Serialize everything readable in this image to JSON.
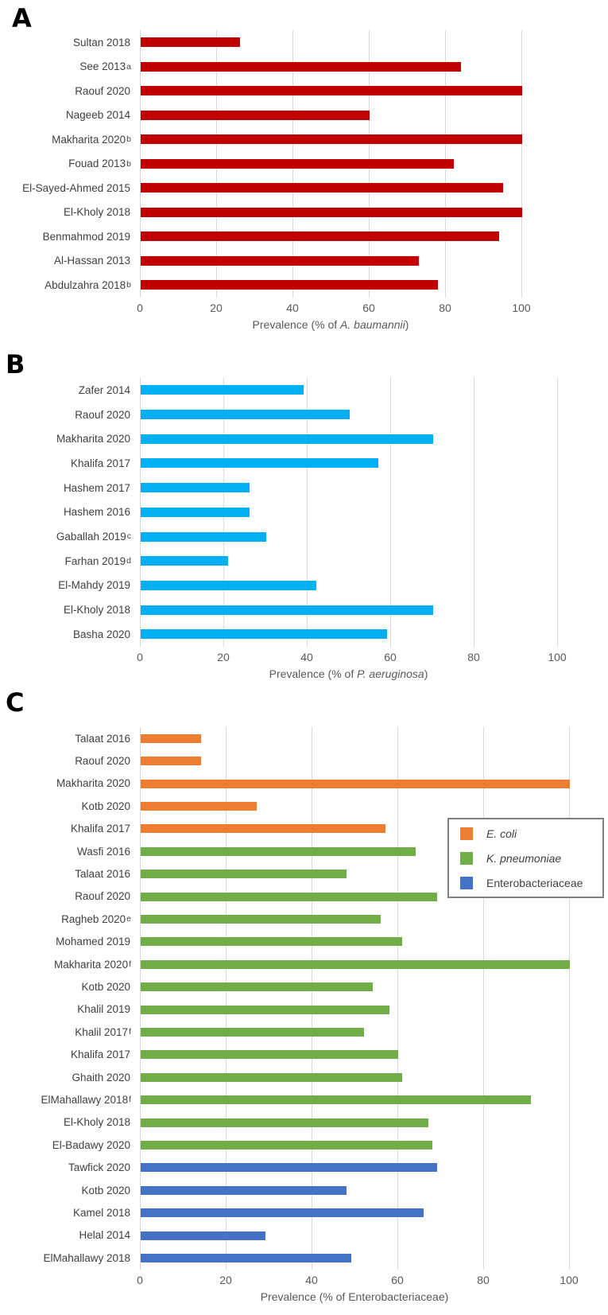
{
  "figure": {
    "panel_letters": [
      "A",
      "B",
      "C"
    ]
  },
  "chart_data": [
    {
      "panel": "A",
      "type": "bar",
      "orientation": "horizontal",
      "bar_color": "#C00000",
      "grid": true,
      "xlim": [
        0,
        100
      ],
      "ticks": [
        0,
        20,
        40,
        60,
        80,
        100
      ],
      "xlabel_prefix": "Prevalence (% of ",
      "xlabel_italic": "A. baumannii",
      "xlabel_suffix": ")",
      "categories": [
        "Sultan 2018",
        "See 2013",
        "Raouf 2020",
        "Nageeb 2014",
        "Makharita 2020",
        "Fouad 2013",
        "El-Sayed-Ahmed 2015",
        "El-Kholy 2018",
        "Benmahmod 2019",
        "Al-Hassan 2013",
        "Abdulzahra 2018"
      ],
      "superscripts": [
        "",
        "a",
        "",
        "",
        "b",
        "b",
        "",
        "",
        "",
        "",
        "b"
      ],
      "values": [
        26,
        84,
        100,
        60,
        100,
        82,
        95,
        100,
        94,
        73,
        78
      ]
    },
    {
      "panel": "B",
      "type": "bar",
      "orientation": "horizontal",
      "bar_color": "#00B0F0",
      "grid": true,
      "xlim": [
        0,
        100
      ],
      "ticks": [
        0,
        20,
        40,
        60,
        80,
        100
      ],
      "xlabel_prefix": "Prevalence (% of ",
      "xlabel_italic": "P. aeruginosa",
      "xlabel_suffix": ")",
      "categories": [
        "Zafer 2014",
        "Raouf 2020",
        "Makharita 2020",
        "Khalifa 2017",
        "Hashem 2017",
        "Hashem 2016",
        "Gaballah 2019",
        "Farhan 2019",
        "El-Mahdy 2019",
        "El-Kholy 2018",
        "Basha 2020"
      ],
      "superscripts": [
        "",
        "",
        "",
        "",
        "",
        "",
        "c",
        "d",
        "",
        "",
        ""
      ],
      "values": [
        39,
        50,
        70,
        57,
        26,
        26,
        30,
        21,
        42,
        70,
        59
      ]
    },
    {
      "panel": "C",
      "type": "bar",
      "orientation": "horizontal",
      "grid": true,
      "xlim": [
        0,
        100
      ],
      "ticks": [
        0,
        20,
        40,
        60,
        80,
        100
      ],
      "xlabel_prefix": "Prevalence (% of Enterobacteriaceae)",
      "xlabel_italic": "",
      "xlabel_suffix": "",
      "series_colors": {
        "E. coli": "#ED7D31",
        "K. pneumoniae": "#70AD47",
        "Enterobacteriaceae": "#4472C4"
      },
      "legend": {
        "position": "right",
        "entries": [
          {
            "label": "E. coli",
            "italic": true,
            "color": "#ED7D31"
          },
          {
            "label": "K. pneumoniae",
            "italic": true,
            "color": "#70AD47"
          },
          {
            "label": "Enterobacteriaceae",
            "italic": false,
            "color": "#4472C4"
          }
        ]
      },
      "categories": [
        "Talaat 2016",
        "Raouf 2020",
        "Makharita 2020",
        "Kotb 2020",
        "Khalifa 2017",
        "Wasfi 2016",
        "Talaat 2016",
        "Raouf 2020",
        "Ragheb 2020",
        "Mohamed 2019",
        "Makharita 2020",
        "Kotb 2020",
        "Khalil 2019",
        "Khalil 2017",
        "Khalifa 2017",
        "Ghaith 2020",
        "ElMahallawy 2018",
        "El-Kholy 2018",
        "El-Badawy 2020",
        "Tawfick 2020",
        "Kotb 2020",
        "Kamel 2018",
        "Helal 2014",
        "ElMahallawy 2018"
      ],
      "superscripts": [
        "",
        "",
        "",
        "",
        "",
        "",
        "",
        "",
        "e",
        "",
        "f",
        "",
        "",
        "f",
        "",
        "",
        "f",
        "",
        "",
        "",
        "",
        "",
        "",
        ""
      ],
      "groups": [
        "E. coli",
        "E. coli",
        "E. coli",
        "E. coli",
        "E. coli",
        "K. pneumoniae",
        "K. pneumoniae",
        "K. pneumoniae",
        "K. pneumoniae",
        "K. pneumoniae",
        "K. pneumoniae",
        "K. pneumoniae",
        "K. pneumoniae",
        "K. pneumoniae",
        "K. pneumoniae",
        "K. pneumoniae",
        "K. pneumoniae",
        "K. pneumoniae",
        "K. pneumoniae",
        "Enterobacteriaceae",
        "Enterobacteriaceae",
        "Enterobacteriaceae",
        "Enterobacteriaceae",
        "Enterobacteriaceae"
      ],
      "values": [
        14,
        14,
        100,
        27,
        57,
        64,
        48,
        69,
        56,
        61,
        100,
        54,
        58,
        52,
        60,
        61,
        91,
        67,
        68,
        69,
        48,
        66,
        29,
        49
      ]
    }
  ]
}
